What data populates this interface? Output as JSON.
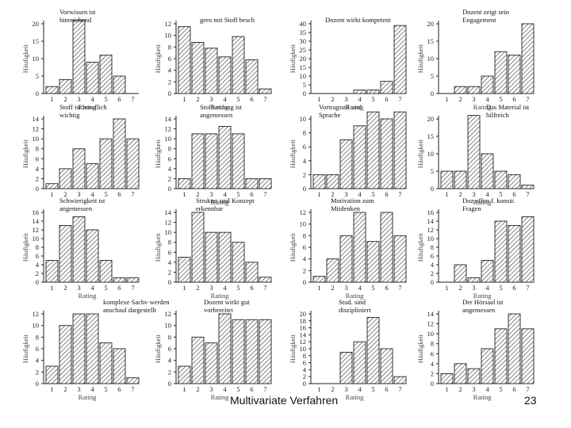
{
  "footer": {
    "title": "Multivariate Verfahren",
    "page": "23"
  },
  "chart_data": [
    {
      "type": "bar",
      "title": "Vorwissen ist hinreichend",
      "xlabel": "Rating",
      "ylabel": "Häufigkeit",
      "categories": [
        "1",
        "2",
        "3",
        "4",
        "5",
        "6",
        "7"
      ],
      "values": [
        2,
        4,
        21,
        9,
        11,
        5,
        0
      ],
      "ylim": [
        0,
        20
      ],
      "yticks": [
        0,
        5,
        10,
        15,
        20
      ]
    },
    {
      "type": "bar",
      "title": "gern mit Stoff besch",
      "xlabel": "Rating",
      "ylabel": "Häufigkeit",
      "categories": [
        "1",
        "2",
        "3",
        "4",
        "5",
        "6",
        "7"
      ],
      "values": [
        11.5,
        8.8,
        7.8,
        6.3,
        9.8,
        5.8,
        0.8
      ],
      "ylim": [
        0,
        12
      ],
      "yticks": [
        0,
        2,
        4,
        6,
        8,
        10,
        12
      ]
    },
    {
      "type": "bar",
      "title": "Dozent wirkt kompetent",
      "xlabel": "Rating",
      "ylabel": "Häufigkeit",
      "categories": [
        "1",
        "2",
        "3",
        "4",
        "5",
        "6",
        "7"
      ],
      "values": [
        0,
        0,
        0,
        2,
        2,
        7,
        39
      ],
      "ylim": [
        0,
        40
      ],
      "yticks": [
        0,
        5,
        10,
        15,
        20,
        25,
        30,
        35,
        40
      ]
    },
    {
      "type": "bar",
      "title": "Dozent zeigt sein Engagement",
      "xlabel": "Rating",
      "ylabel": "Häufigkeit",
      "categories": [
        "1",
        "2",
        "3",
        "4",
        "5",
        "6",
        "7"
      ],
      "values": [
        0,
        2,
        2,
        5,
        12,
        11,
        20
      ],
      "ylim": [
        0,
        20
      ],
      "yticks": [
        0,
        5,
        10,
        15,
        20
      ]
    },
    {
      "type": "bar",
      "title": "Stoff ist beruflich wichtig",
      "xlabel": "",
      "ylabel": "Häufigkeit",
      "categories": [
        "1",
        "2",
        "3",
        "4",
        "5",
        "6",
        "7"
      ],
      "values": [
        1,
        4,
        8,
        5,
        10,
        14,
        10
      ],
      "ylim": [
        0,
        14
      ],
      "yticks": [
        0,
        2,
        4,
        6,
        8,
        10,
        12,
        14
      ]
    },
    {
      "type": "bar",
      "title": "Stoffumfang ist angemessen",
      "xlabel": "Rating",
      "ylabel": "Häufigkeit",
      "categories": [
        "1",
        "2",
        "3",
        "4",
        "5",
        "6",
        "7"
      ],
      "values": [
        2,
        11,
        11,
        12.5,
        11,
        2,
        2
      ],
      "ylim": [
        0,
        14
      ],
      "yticks": [
        0,
        2,
        4,
        6,
        8,
        10,
        12,
        14
      ]
    },
    {
      "type": "bar",
      "title": "Vortragsstil und Sprache",
      "xlabel": "",
      "ylabel": "Häufigkeit",
      "categories": [
        "1",
        "2",
        "3",
        "4",
        "5",
        "6",
        "7"
      ],
      "values": [
        2,
        2,
        7,
        9,
        11,
        10,
        11
      ],
      "ylim": [
        0,
        10
      ],
      "yticks": [
        0,
        2,
        4,
        6,
        8,
        10
      ]
    },
    {
      "type": "bar",
      "title": "Das Material ist hilfreich",
      "xlabel": "Rating",
      "ylabel": "Häufigkeit",
      "categories": [
        "1",
        "2",
        "3",
        "4",
        "5",
        "6",
        "7"
      ],
      "values": [
        5,
        5,
        21,
        10,
        5,
        4,
        1
      ],
      "ylim": [
        0,
        20
      ],
      "yticks": [
        0,
        5,
        10,
        15,
        20
      ]
    },
    {
      "type": "bar",
      "title": "Schwierigkeit ist angemessen",
      "xlabel": "Rating",
      "ylabel": "Häufigkeit",
      "categories": [
        "1",
        "2",
        "3",
        "4",
        "5",
        "6",
        "7"
      ],
      "values": [
        5,
        13,
        15,
        12,
        5,
        1,
        1
      ],
      "ylim": [
        0,
        16
      ],
      "yticks": [
        0,
        2,
        4,
        6,
        8,
        10,
        12,
        14,
        16
      ]
    },
    {
      "type": "bar",
      "title": "Struktur und Konzept erkennbar",
      "xlabel": "Rating",
      "ylabel": "Häufigkeit",
      "categories": [
        "1",
        "2",
        "3",
        "4",
        "5",
        "6",
        "7"
      ],
      "values": [
        5,
        14,
        10,
        10,
        8,
        4,
        1
      ],
      "ylim": [
        0,
        14
      ],
      "yticks": [
        0,
        2,
        4,
        6,
        8,
        10,
        12,
        14
      ]
    },
    {
      "type": "bar",
      "title": "Motivation zum Mitdenken",
      "xlabel": "Rating",
      "ylabel": "Häufigkeit",
      "categories": [
        "1",
        "2",
        "3",
        "4",
        "5",
        "6",
        "7"
      ],
      "values": [
        1,
        4,
        8,
        12,
        7,
        12,
        8
      ],
      "ylim": [
        0,
        12
      ],
      "yticks": [
        0,
        2,
        4,
        6,
        8,
        10,
        12
      ]
    },
    {
      "type": "bar",
      "title": "Doz offen f. konstr. Fragen",
      "xlabel": "Rating",
      "ylabel": "Häufigkeit",
      "categories": [
        "1",
        "2",
        "3",
        "4",
        "5",
        "6",
        "7"
      ],
      "values": [
        0,
        4,
        1,
        5,
        14,
        13,
        15
      ],
      "ylim": [
        0,
        16
      ],
      "yticks": [
        0,
        2,
        4,
        6,
        8,
        10,
        12,
        14,
        16
      ]
    },
    {
      "type": "bar",
      "title": "komplexe Sachv werden anschaul dargestellt",
      "xlabel": "Rating",
      "ylabel": "Häufigkeit",
      "categories": [
        "1",
        "2",
        "3",
        "4",
        "5",
        "6",
        "7"
      ],
      "values": [
        3,
        10,
        12,
        12,
        7,
        6,
        1
      ],
      "ylim": [
        0,
        12
      ],
      "yticks": [
        0,
        2,
        4,
        6,
        8,
        10,
        12
      ]
    },
    {
      "type": "bar",
      "title": "Dozent wirkt gut vorbereitet",
      "xlabel": "Rating",
      "ylabel": "Häufigkeit",
      "categories": [
        "1",
        "2",
        "3",
        "4",
        "5",
        "6",
        "7"
      ],
      "values": [
        3,
        8,
        7,
        12,
        11,
        11,
        11
      ],
      "ylim": [
        0,
        12
      ],
      "yticks": [
        0,
        2,
        4,
        6,
        8,
        10,
        12
      ]
    },
    {
      "type": "bar",
      "title": "Stud. sind diszipliniert",
      "xlabel": "Rating",
      "ylabel": "Häufigkeit",
      "categories": [
        "1",
        "2",
        "3",
        "4",
        "5",
        "6",
        "7"
      ],
      "values": [
        0,
        0,
        9,
        12,
        19,
        10,
        2
      ],
      "ylim": [
        0,
        20
      ],
      "yticks": [
        0,
        2,
        4,
        6,
        8,
        10,
        12,
        14,
        16,
        18,
        20
      ]
    },
    {
      "type": "bar",
      "title": "Der Hörsaal ist angemessen",
      "xlabel": "Rating",
      "ylabel": "Häufigkeit",
      "categories": [
        "1",
        "2",
        "3",
        "4",
        "5",
        "6",
        "7"
      ],
      "values": [
        2,
        4,
        3,
        7,
        11,
        14,
        11
      ],
      "ylim": [
        0,
        14
      ],
      "yticks": [
        0,
        2,
        4,
        6,
        8,
        10,
        12,
        14
      ]
    }
  ]
}
